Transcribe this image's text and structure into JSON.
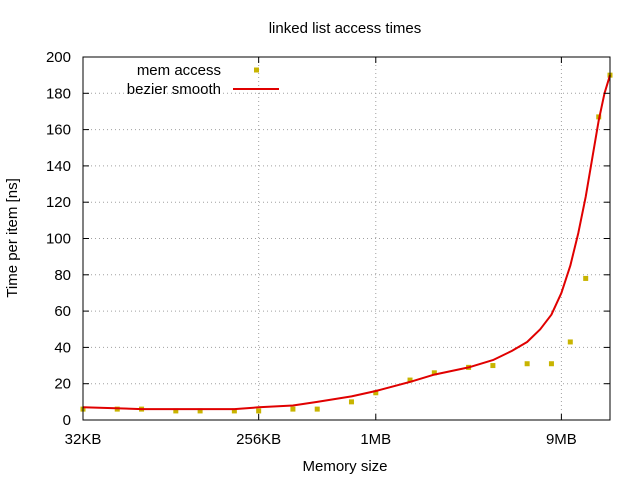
{
  "chart_data": {
    "type": "scatter",
    "title": "linked list access times",
    "xlabel": "Memory size",
    "ylabel": "Time per item [ns]",
    "xscale": "log2",
    "xlim_kb": [
      32,
      16384
    ],
    "ylim": [
      0,
      200
    ],
    "yticks": [
      0,
      20,
      40,
      60,
      80,
      100,
      120,
      140,
      160,
      180,
      200
    ],
    "xticks": [
      {
        "kb": 32,
        "label": "32KB"
      },
      {
        "kb": 256,
        "label": "256KB"
      },
      {
        "kb": 1024,
        "label": "1MB"
      },
      {
        "kb": 9216,
        "label": "9MB"
      }
    ],
    "grid": true,
    "legend_position": "top-left",
    "series": [
      {
        "name": "mem access",
        "kind": "points",
        "color": "#c8b400",
        "points": [
          {
            "x_kb": 32,
            "y": 6
          },
          {
            "x_kb": 48,
            "y": 6
          },
          {
            "x_kb": 64,
            "y": 6
          },
          {
            "x_kb": 96,
            "y": 5
          },
          {
            "x_kb": 128,
            "y": 5
          },
          {
            "x_kb": 192,
            "y": 5
          },
          {
            "x_kb": 256,
            "y": 5
          },
          {
            "x_kb": 384,
            "y": 6
          },
          {
            "x_kb": 512,
            "y": 6
          },
          {
            "x_kb": 768,
            "y": 10
          },
          {
            "x_kb": 1024,
            "y": 15
          },
          {
            "x_kb": 1536,
            "y": 22
          },
          {
            "x_kb": 2048,
            "y": 26
          },
          {
            "x_kb": 3072,
            "y": 29
          },
          {
            "x_kb": 4096,
            "y": 30
          },
          {
            "x_kb": 6144,
            "y": 31
          },
          {
            "x_kb": 8192,
            "y": 31
          },
          {
            "x_kb": 10240,
            "y": 43
          },
          {
            "x_kb": 12288,
            "y": 78
          },
          {
            "x_kb": 14336,
            "y": 167
          },
          {
            "x_kb": 16384,
            "y": 190
          }
        ]
      },
      {
        "name": "bezier smooth",
        "kind": "line",
        "color": "#e00000",
        "points": [
          {
            "x_kb": 32,
            "y": 7
          },
          {
            "x_kb": 64,
            "y": 6
          },
          {
            "x_kb": 128,
            "y": 6
          },
          {
            "x_kb": 192,
            "y": 6
          },
          {
            "x_kb": 256,
            "y": 7
          },
          {
            "x_kb": 384,
            "y": 8
          },
          {
            "x_kb": 512,
            "y": 10
          },
          {
            "x_kb": 768,
            "y": 13
          },
          {
            "x_kb": 1024,
            "y": 16
          },
          {
            "x_kb": 1536,
            "y": 21
          },
          {
            "x_kb": 2048,
            "y": 25
          },
          {
            "x_kb": 3072,
            "y": 29
          },
          {
            "x_kb": 4096,
            "y": 33
          },
          {
            "x_kb": 5120,
            "y": 38
          },
          {
            "x_kb": 6144,
            "y": 43
          },
          {
            "x_kb": 7168,
            "y": 50
          },
          {
            "x_kb": 8192,
            "y": 58
          },
          {
            "x_kb": 9216,
            "y": 70
          },
          {
            "x_kb": 10240,
            "y": 85
          },
          {
            "x_kb": 11264,
            "y": 103
          },
          {
            "x_kb": 12288,
            "y": 123
          },
          {
            "x_kb": 13312,
            "y": 145
          },
          {
            "x_kb": 14336,
            "y": 165
          },
          {
            "x_kb": 15360,
            "y": 180
          },
          {
            "x_kb": 16384,
            "y": 190
          }
        ]
      }
    ]
  }
}
